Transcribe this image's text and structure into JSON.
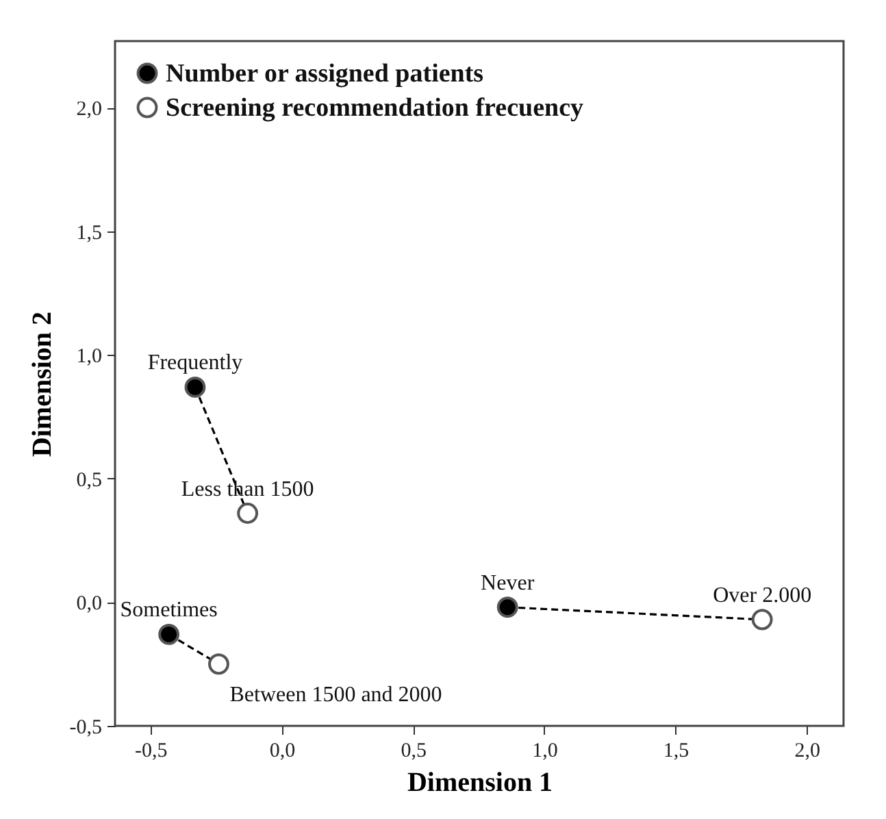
{
  "chart_data": {
    "type": "scatter",
    "xlabel": "Dimension 1",
    "ylabel": "Dimension 2",
    "xlim": [
      -0.635,
      2.14
    ],
    "ylim": [
      -0.5,
      2.27
    ],
    "xticks": [
      {
        "value": -0.5,
        "label": "-0,5"
      },
      {
        "value": 0,
        "label": "0,0"
      },
      {
        "value": 0.5,
        "label": "0,5"
      },
      {
        "value": 1,
        "label": "1,0"
      },
      {
        "value": 1.5,
        "label": "1,5"
      },
      {
        "value": 2,
        "label": "2,0"
      }
    ],
    "yticks": [
      {
        "value": -0.5,
        "label": "-0,5"
      },
      {
        "value": 0,
        "label": "0,0"
      },
      {
        "value": 0.5,
        "label": "0,5"
      },
      {
        "value": 1,
        "label": "1,0"
      },
      {
        "value": 1.5,
        "label": "1,5"
      },
      {
        "value": 2,
        "label": "2,0"
      }
    ],
    "grid": false,
    "legend": "top left",
    "marker": "circle",
    "series": [
      {
        "type": "line",
        "color": "#000000",
        "line_style": "dashed",
        "marker": "none",
        "x": [
          -0.33,
          -0.13
        ],
        "values": [
          0.87,
          0.36
        ]
      },
      {
        "type": "line",
        "color": "#000000",
        "line_style": "dashed",
        "marker": "none",
        "x": [
          -0.43,
          -0.24
        ],
        "values": [
          -0.13,
          -0.25
        ]
      },
      {
        "type": "line",
        "color": "#000000",
        "line_style": "dashed",
        "marker": "none",
        "x": [
          0.86,
          1.83
        ],
        "values": [
          -0.02,
          -0.07
        ]
      },
      {
        "name": "Number or assigned patients",
        "color": "#000000",
        "x": [
          -0.33,
          -0.43,
          0.86
        ],
        "values": [
          0.87,
          -0.13,
          -0.02
        ]
      },
      {
        "name": "Screening recommendation frecuency",
        "color": "#ffffff",
        "x": [
          -0.13,
          -0.24,
          1.83
        ],
        "values": [
          0.36,
          -0.25,
          -0.07
        ]
      }
    ],
    "annotations": [
      {
        "text": "Frequently",
        "x": -0.33,
        "y": 0.87
      },
      {
        "text": "Less than 1500",
        "x": -0.13,
        "y": 0.36
      },
      {
        "text": "Sometimes",
        "x": -0.43,
        "y": -0.13
      },
      {
        "text": "Between 1500 and 2000",
        "x": -0.24,
        "y": -0.25
      },
      {
        "text": "Never",
        "x": 0.86,
        "y": -0.02
      },
      {
        "text": "Over 2.000",
        "x": 1.83,
        "y": -0.07
      }
    ]
  }
}
